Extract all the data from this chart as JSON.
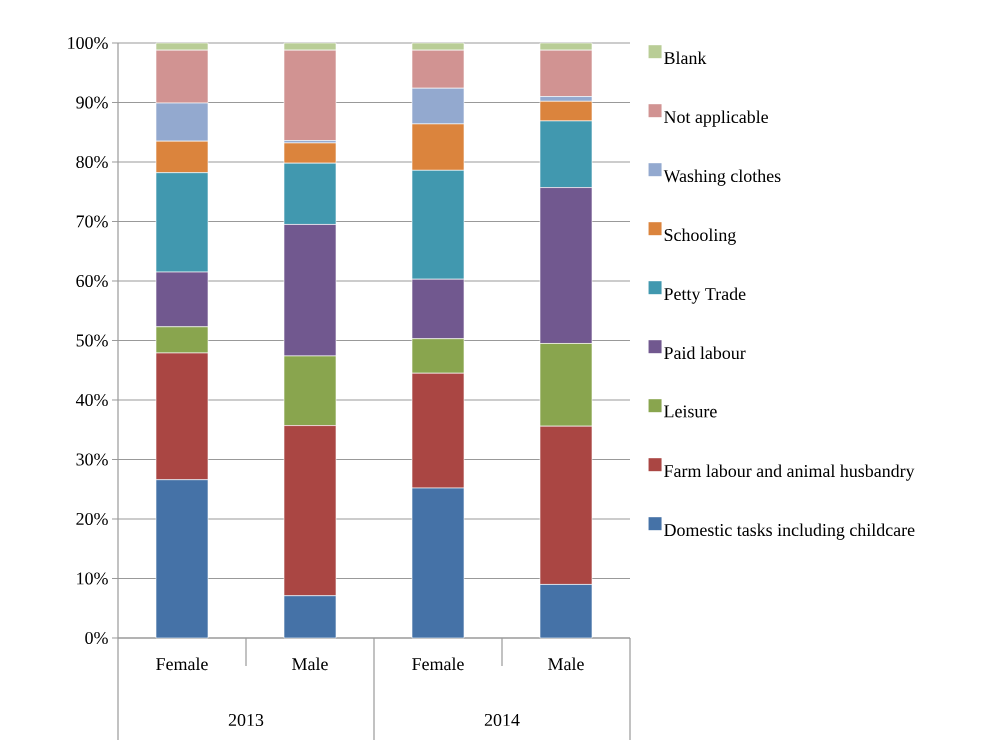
{
  "chart_data": {
    "type": "bar",
    "stacked": true,
    "categories": [
      "Female",
      "Male",
      "Female",
      "Male"
    ],
    "series": [
      {
        "name": "Domestic tasks including childcare",
        "color": "#4572a7",
        "values": [
          26.6,
          7.1,
          25.2,
          9.0
        ]
      },
      {
        "name": "Farm labour and animal husbandry",
        "color": "#aa4643",
        "values": [
          21.3,
          28.6,
          19.3,
          26.6
        ]
      },
      {
        "name": "Leisure",
        "color": "#89a54e",
        "values": [
          4.4,
          11.7,
          5.8,
          13.9
        ]
      },
      {
        "name": "Paid labour",
        "color": "#71588f",
        "values": [
          9.2,
          22.1,
          10.0,
          26.2
        ]
      },
      {
        "name": "Petty Trade",
        "color": "#4198af",
        "values": [
          16.7,
          10.3,
          18.3,
          11.2
        ]
      },
      {
        "name": "Schooling",
        "color": "#db843d",
        "values": [
          5.3,
          3.4,
          7.8,
          3.3
        ]
      },
      {
        "name": "Washing clothes",
        "color": "#93a9cf",
        "values": [
          6.4,
          0.4,
          6.0,
          0.8
        ]
      },
      {
        "name": "Not applicable",
        "color": "#d19392",
        "values": [
          8.9,
          15.2,
          6.4,
          7.8
        ]
      },
      {
        "name": "Blank",
        "color": "#b9cd96",
        "values": [
          1.2,
          1.2,
          1.2,
          1.2
        ]
      }
    ],
    "ylim": [
      0,
      100
    ],
    "yticks": [
      {
        "value": 0,
        "label": "0%"
      },
      {
        "value": 10,
        "label": "10%"
      },
      {
        "value": 20,
        "label": "20%"
      },
      {
        "value": 30,
        "label": "30%"
      },
      {
        "value": 40,
        "label": "40%"
      },
      {
        "value": 50,
        "label": "50%"
      },
      {
        "value": 60,
        "label": "60%"
      },
      {
        "value": 70,
        "label": "70%"
      },
      {
        "value": 80,
        "label": "80%"
      },
      {
        "value": 90,
        "label": "90%"
      },
      {
        "value": 100,
        "label": "100%"
      }
    ],
    "grid": "y",
    "legend": "right",
    "annotations": [
      "2013",
      "2014"
    ]
  }
}
